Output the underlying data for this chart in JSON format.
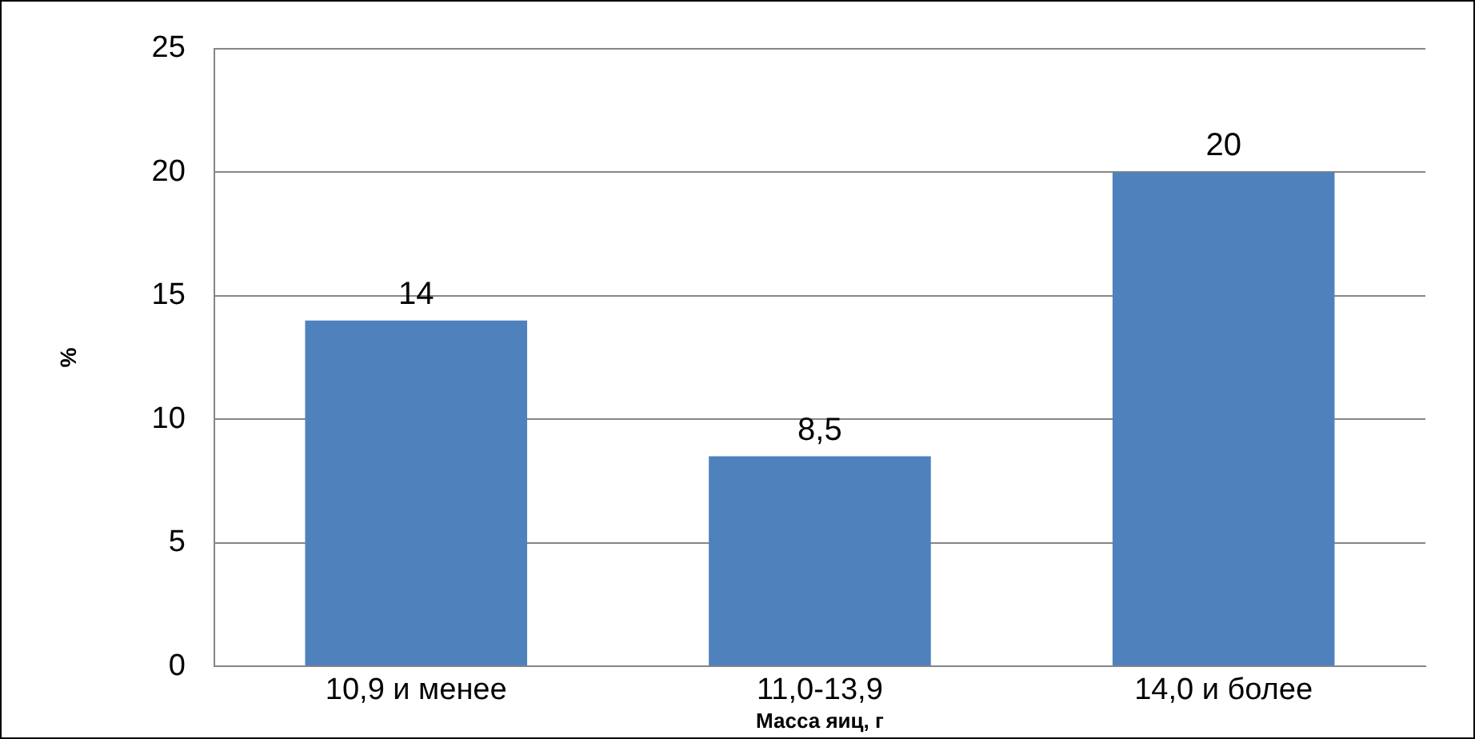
{
  "chart_data": {
    "type": "bar",
    "xlabel": "Масса яиц, г",
    "ylabel": "%",
    "categories": [
      "10,9 и менее",
      "11,0-13,9",
      "14,0 и более"
    ],
    "values": [
      14,
      8.5,
      20
    ],
    "value_labels": [
      "14",
      "8,5",
      "20"
    ],
    "color": "#4f81bd",
    "ylim": [
      0,
      25
    ],
    "yticks": [
      0,
      5,
      10,
      15,
      20,
      25
    ],
    "grid": "y",
    "legend": false
  }
}
